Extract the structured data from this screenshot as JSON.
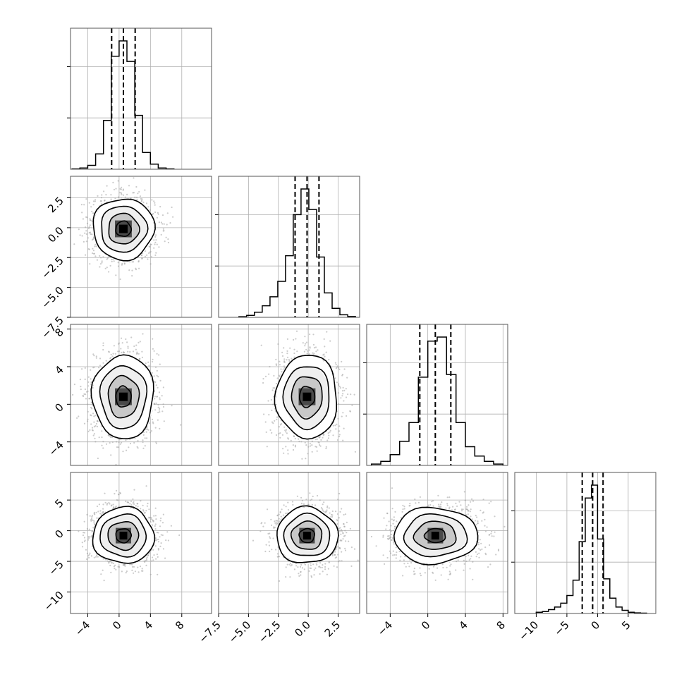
{
  "figure": {
    "type": "corner-plot",
    "grid": true,
    "colors": {
      "hist_line": "#000000",
      "quantile_line": "#000000",
      "scatter_points": "#a0a0a0",
      "contour_line": "#000000",
      "density_dark": "#000000",
      "density_light": "#d9d9d9",
      "grid": "#b0b0b0"
    }
  },
  "chart_data": {
    "type": "heatmap",
    "parameters": [
      {
        "id": 0,
        "range": [
          -6.2,
          11.8
        ],
        "ticks": [
          -4,
          0,
          4,
          8
        ],
        "tick_labels": [
          "−4",
          "0",
          "4",
          "8"
        ],
        "mean": 0.55,
        "sd": 1.45,
        "quantiles": [
          -0.95,
          0.55,
          2.05
        ],
        "hist_bins": [
          -6.0,
          -5.0,
          -4.0,
          -3.0,
          -2.0,
          -1.0,
          0.0,
          1.0,
          2.0,
          3.0,
          4.0,
          5.0,
          6.0,
          7.0
        ],
        "hist_counts": [
          0.3,
          1,
          3,
          12,
          38,
          88,
          100,
          84,
          42,
          13,
          4,
          1,
          0.3
        ]
      },
      {
        "id": 1,
        "range": [
          -7.5,
          4.3
        ],
        "ticks": [
          -7.5,
          -5.0,
          -2.5,
          0.0,
          2.5
        ],
        "tick_labels": [
          "−7.5",
          "−5.0",
          "−2.5",
          "0.0",
          "2.5"
        ],
        "mean": -0.1,
        "sd": 0.95,
        "quantiles": [
          -1.1,
          -0.1,
          0.9
        ],
        "hist_bins": [
          -5.8,
          -5.15,
          -4.5,
          -3.85,
          -3.2,
          -2.55,
          -1.9,
          -1.25,
          -0.6,
          0.05,
          0.7,
          1.35,
          2.0,
          2.65,
          3.3,
          3.95
        ],
        "hist_counts": [
          0.5,
          1.5,
          4,
          9,
          16,
          28,
          48,
          80,
          100,
          84,
          47,
          19,
          7,
          2,
          0.6
        ]
      },
      {
        "id": 2,
        "range": [
          -6.5,
          8.5
        ],
        "ticks": [
          -4,
          0,
          4,
          8
        ],
        "tick_labels": [
          "−4",
          "0",
          "4",
          "8"
        ],
        "mean": 0.8,
        "sd": 1.65,
        "quantiles": [
          -0.85,
          0.8,
          2.45
        ],
        "hist_bins": [
          -6.0,
          -5.0,
          -4.0,
          -3.0,
          -2.0,
          -1.0,
          0.0,
          1.0,
          2.0,
          3.0,
          4.0,
          5.0,
          6.0,
          7.0,
          8.0
        ],
        "hist_counts": [
          1,
          3,
          8,
          18,
          32,
          66,
          93,
          96,
          68,
          32,
          14,
          7,
          3,
          1
        ]
      },
      {
        "id": 3,
        "range": [
          -13.5,
          9.5
        ],
        "ticks": [
          -10,
          -5,
          0,
          5
        ],
        "tick_labels": [
          "−10",
          "−5",
          "0",
          "5"
        ],
        "mean": -0.8,
        "sd": 1.7,
        "quantiles": [
          -2.5,
          -0.8,
          0.9
        ],
        "hist_bins": [
          -10.0,
          -9.0,
          -8.0,
          -7.0,
          -6.0,
          -5.0,
          -4.0,
          -3.0,
          -2.0,
          -1.0,
          0.0,
          1.0,
          2.0,
          3.0,
          4.0,
          5.0,
          6.0,
          7.0,
          8.0
        ],
        "hist_counts": [
          1,
          1.5,
          3,
          5,
          8,
          14,
          26,
          56,
          90,
          100,
          58,
          27,
          12,
          5,
          2.5,
          1,
          0.5,
          0.3
        ]
      }
    ],
    "pairs": [
      {
        "x": 0,
        "y": 1,
        "corr": 0.0
      },
      {
        "x": 0,
        "y": 2,
        "corr": 0.0
      },
      {
        "x": 1,
        "y": 2,
        "corr": 0.0
      },
      {
        "x": 0,
        "y": 3,
        "corr": 0.0
      },
      {
        "x": 1,
        "y": 3,
        "corr": 0.0
      },
      {
        "x": 2,
        "y": 3,
        "corr": 0.05
      }
    ],
    "contour_levels_sigma": [
      0.5,
      1.0,
      1.5,
      2.0
    ],
    "samples_per_panel": 1800
  }
}
